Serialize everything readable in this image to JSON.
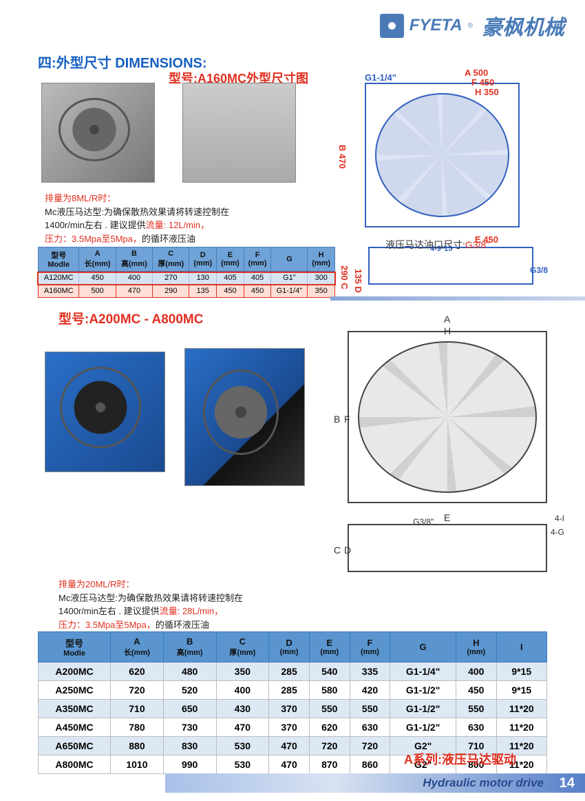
{
  "header": {
    "brand1": "FYETA",
    "brand2": "豪枫机械",
    "reg": "®"
  },
  "sectionTitle": "四:外型尺寸 DIMENSIONS:",
  "subtitle1": "型号:A160MC外型尺寸图",
  "subtitle2": "型号:A200MC  -  A800MC",
  "diagram1": {
    "A": "500",
    "B": "470",
    "C": "290",
    "D": "135",
    "E": "450",
    "F": "450",
    "H": "350",
    "G1": "G1-1/4\"",
    "G3": "G3/8",
    "holes": "4-9*15"
  },
  "motorNote": {
    "label": "液压马达油口尺寸:",
    "value": "G3/8\""
  },
  "note1": {
    "l1": "排量为8ML/R时：",
    "l2a": "Mc液压马达型:为确保散热效果请将转速控制在",
    "l2b": "1400r/min左右 .   建议提供",
    "l2c": "流量: 12L/min，",
    "l3a": "压力：3.5Mpa至5Mpa，",
    "l3b": "的循环液压油"
  },
  "table1": {
    "headers": [
      "型号\nModle",
      "A\n长(mm)",
      "B\n高(mm)",
      "C\n厚(mm)",
      "D\n(mm)",
      "E\n(mm)",
      "F\n(mm)",
      "G",
      "H\n(mm)"
    ],
    "rows": [
      [
        "A120MC",
        "450",
        "400",
        "270",
        "130",
        "405",
        "405",
        "G1\"",
        "300"
      ],
      [
        "A160MC",
        "500",
        "470",
        "290",
        "135",
        "450",
        "450",
        "G1-1/4\"",
        "350"
      ]
    ]
  },
  "diagram2": {
    "A": "A",
    "B": "B",
    "C": "C",
    "D": "D",
    "E": "E",
    "F": "F",
    "H": "H",
    "G3": "G3/8\"",
    "I4": "4-I",
    "G4": "4-G"
  },
  "note2": {
    "l1": "排量为20ML/R时：",
    "l2a": "Mc液压马达型:为确保散热效果请将转速控制在",
    "l2b": "1400r/min左右 .   建议提供",
    "l2c": "流量: 28L/min，",
    "l3a": "压力：3.5Mpa至5Mpa，",
    "l3b": "的循环液压油"
  },
  "table2": {
    "headers": [
      {
        "t": "型号",
        "s": "Modle"
      },
      {
        "t": "A",
        "s": "长(mm)"
      },
      {
        "t": "B",
        "s": "高(mm)"
      },
      {
        "t": "C",
        "s": "厚(mm)"
      },
      {
        "t": "D",
        "s": "(mm)"
      },
      {
        "t": "E",
        "s": "(mm)"
      },
      {
        "t": "F",
        "s": "(mm)"
      },
      {
        "t": "G",
        "s": ""
      },
      {
        "t": "H",
        "s": "(mm)"
      },
      {
        "t": "I",
        "s": ""
      }
    ],
    "rows": [
      [
        "A200MC",
        "620",
        "480",
        "350",
        "285",
        "540",
        "335",
        "G1-1/4\"",
        "400",
        "9*15"
      ],
      [
        "A250MC",
        "720",
        "520",
        "400",
        "285",
        "580",
        "420",
        "G1-1/2\"",
        "450",
        "9*15"
      ],
      [
        "A350MC",
        "710",
        "650",
        "430",
        "370",
        "550",
        "550",
        "G1-1/2\"",
        "550",
        "11*20"
      ],
      [
        "A450MC",
        "780",
        "730",
        "470",
        "370",
        "620",
        "630",
        "G1-1/2\"",
        "630",
        "11*20"
      ],
      [
        "A650MC",
        "880",
        "830",
        "530",
        "470",
        "720",
        "720",
        "G2\"",
        "710",
        "11*20"
      ],
      [
        "A800MC",
        "1010",
        "990",
        "530",
        "470",
        "870",
        "860",
        "G2\"",
        "800",
        "11*20"
      ]
    ]
  },
  "footerRed": "A系列:液压马达驱动",
  "footerText": "Hydraulic motor drive",
  "pageNum": "14"
}
